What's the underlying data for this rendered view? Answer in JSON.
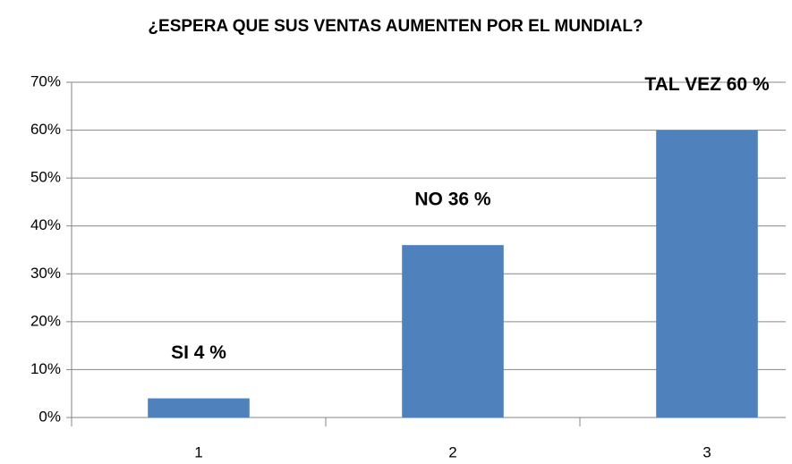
{
  "chart_data": {
    "type": "bar",
    "title": "¿ESPERA QUE SUS VENTAS AUMENTEN POR EL MUNDIAL?",
    "categories": [
      "1",
      "2",
      "3"
    ],
    "values": [
      4,
      36,
      60
    ],
    "value_labels": [
      "SI 4 %",
      "NO 36 %",
      "TAL VEZ 60 %"
    ],
    "color": "#4f81bd",
    "ylim": [
      0,
      70
    ],
    "yticks": [
      {
        "value": 0,
        "label": "0%"
      },
      {
        "value": 10,
        "label": "10%"
      },
      {
        "value": 20,
        "label": "20%"
      },
      {
        "value": 30,
        "label": "30%"
      },
      {
        "value": 40,
        "label": "40%"
      },
      {
        "value": 50,
        "label": "50%"
      },
      {
        "value": 60,
        "label": "60%"
      },
      {
        "value": 70,
        "label": "70%"
      }
    ],
    "grid": true
  }
}
